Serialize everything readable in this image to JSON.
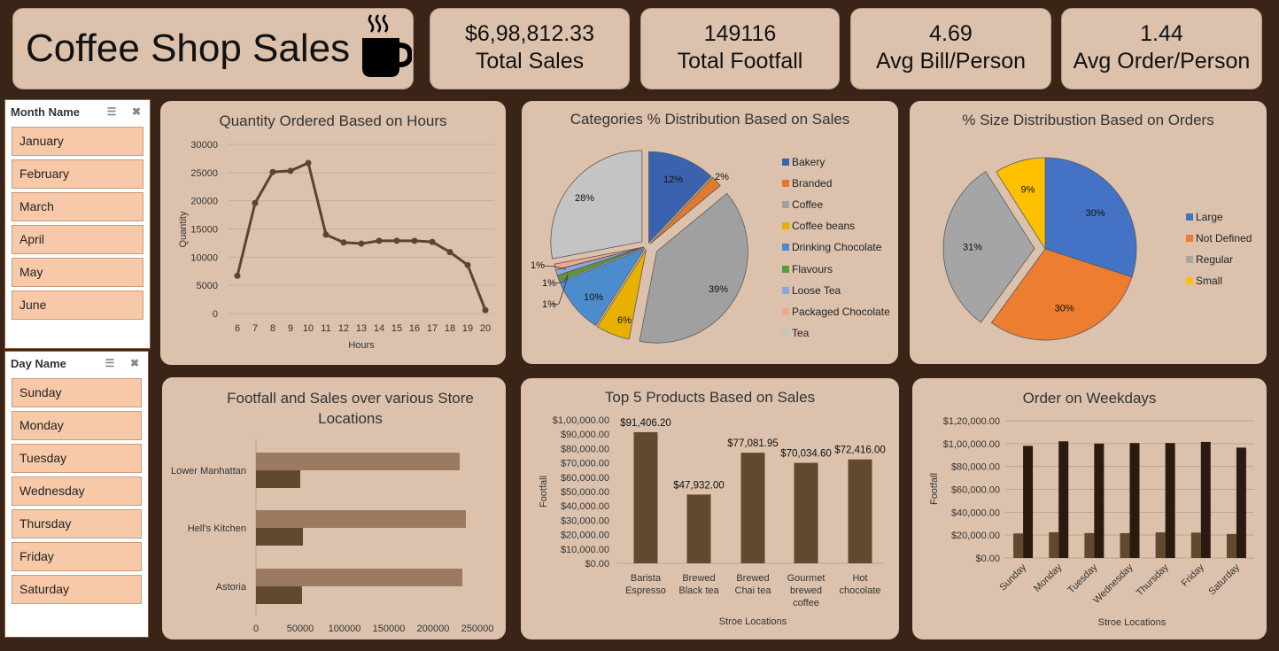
{
  "header": {
    "title": "Coffee Shop Sales",
    "icon": "coffee-cup-icon"
  },
  "kpis": [
    {
      "value": "$6,98,812.33",
      "label": "Total Sales"
    },
    {
      "value": "149116",
      "label": "Total Footfall"
    },
    {
      "value": "4.69",
      "label": "Avg Bill/Person"
    },
    {
      "value": "1.44",
      "label": "Avg Order/Person"
    }
  ],
  "month_slicer": {
    "title": "Month Name",
    "items": [
      "January",
      "February",
      "March",
      "April",
      "May",
      "June"
    ]
  },
  "day_slicer": {
    "title": "Day Name",
    "items": [
      "Sunday",
      "Monday",
      "Tuesday",
      "Wednesday",
      "Thursday",
      "Friday",
      "Saturday"
    ]
  },
  "colors": {
    "background": "#3a2418",
    "card": "#dcc2ad",
    "line": "#5e4430",
    "bar_dark": "#62482f",
    "bar_light": "#9b7a62",
    "bar_darkest": "#2a1a10"
  },
  "chart_data": [
    {
      "id": "hours",
      "type": "line",
      "title": "Quantity Ordered Based on Hours",
      "xlabel": "Hours",
      "ylabel": "Quantity",
      "x": [
        6,
        7,
        8,
        9,
        10,
        11,
        12,
        13,
        14,
        15,
        16,
        17,
        18,
        19,
        20
      ],
      "values": [
        6700,
        19600,
        25100,
        25300,
        26700,
        14000,
        12600,
        12400,
        12900,
        12900,
        12900,
        12700,
        10900,
        8600,
        600
      ],
      "ylim": [
        0,
        30000
      ],
      "yticks": [
        "0",
        "5000",
        "10000",
        "15000",
        "20000",
        "25000",
        "30000"
      ],
      "grid": true
    },
    {
      "id": "categories",
      "type": "pie",
      "title": "Categories % Distribution Based on Sales",
      "slices": [
        {
          "name": "Bakery",
          "value": 12,
          "label": "12%",
          "color": "#3b62ae"
        },
        {
          "name": "Branded",
          "value": 2,
          "label": "2%",
          "color": "#e07a2c"
        },
        {
          "name": "Coffee",
          "value": 39,
          "label": "39%",
          "color": "#a0a0a0"
        },
        {
          "name": "Coffee beans",
          "value": 6,
          "label": "6%",
          "color": "#e8b000"
        },
        {
          "name": "Drinking Chocolate",
          "value": 10,
          "label": "10%",
          "color": "#4d8ccc"
        },
        {
          "name": "Flavours",
          "value": 1,
          "label": "1%",
          "color": "#5b9a3a"
        },
        {
          "name": "Loose Tea",
          "value": 1,
          "label": "1%",
          "color": "#8ea6dc"
        },
        {
          "name": "Packaged Chocolate",
          "value": 1,
          "label": "1%",
          "color": "#f0a88a"
        },
        {
          "name": "Tea",
          "value": 28,
          "label": "28%",
          "color": "#c4c4c4"
        }
      ],
      "legend": "right"
    },
    {
      "id": "sizes",
      "type": "pie",
      "title": "% Size Distribustion Based on Orders",
      "slices": [
        {
          "name": "Large",
          "value": 30,
          "label": "30%",
          "color": "#4472c4"
        },
        {
          "name": "Not Defined",
          "value": 30,
          "label": "30%",
          "color": "#ed7d31"
        },
        {
          "name": "Regular",
          "value": 31,
          "label": "31%",
          "color": "#a5a5a5"
        },
        {
          "name": "Small",
          "value": 9,
          "label": "9%",
          "color": "#ffc000"
        }
      ],
      "legend": "right"
    },
    {
      "id": "stores",
      "type": "bar",
      "orientation": "horizontal",
      "title": "Footfall and Sales over various Store Locations",
      "categories": [
        "Lower Manhattan",
        "Hell's Kitchen",
        "Astoria"
      ],
      "series": [
        {
          "values": [
            230000,
            237000,
            233000
          ],
          "color": "#9b7a62"
        },
        {
          "values": [
            50000,
            53000,
            52000
          ],
          "color": "#62482f"
        }
      ],
      "xlim": [
        0,
        250000
      ],
      "xticks": [
        "0",
        "50000",
        "100000",
        "150000",
        "200000",
        "250000"
      ]
    },
    {
      "id": "products",
      "type": "bar",
      "title": "Top 5 Products Based on Sales",
      "categories": [
        [
          "Barista",
          "Espresso"
        ],
        [
          "Brewed",
          "Black tea"
        ],
        [
          "Brewed",
          "Chai tea"
        ],
        [
          "Gourmet",
          "brewed",
          "coffee"
        ],
        [
          "Hot",
          "chocolate"
        ]
      ],
      "values": [
        91406.2,
        47932.0,
        77081.95,
        70034.6,
        72416.0
      ],
      "data_labels": [
        "$91,406.20",
        "$47,932.00",
        "$77,081.95",
        "$70,034.60",
        "$72,416.00"
      ],
      "xlabel": "Stroe Locations",
      "ylabel": "Footfall",
      "ylim": [
        0,
        100000
      ],
      "yticks": [
        "$0.00",
        "$10,000.00",
        "$20,000.00",
        "$30,000.00",
        "$40,000.00",
        "$50,000.00",
        "$60,000.00",
        "$70,000.00",
        "$80,000.00",
        "$90,000.00",
        "$1,00,000.00"
      ]
    },
    {
      "id": "weekdays",
      "type": "bar",
      "title": "Order on Weekdays",
      "categories": [
        "Sunday",
        "Monday",
        "Tuesday",
        "Wednesday",
        "Thursday",
        "Friday",
        "Saturday"
      ],
      "series": [
        {
          "values": [
            21500,
            22500,
            21800,
            21700,
            22400,
            22200,
            21000
          ],
          "color": "#62482f"
        },
        {
          "values": [
            98000,
            102000,
            100000,
            100500,
            100500,
            101500,
            96500
          ],
          "color": "#2a1a10"
        }
      ],
      "xlabel": "Stroe Locations",
      "ylabel": "Footfall",
      "ylim": [
        0,
        120000
      ],
      "yticks": [
        "$0.00",
        "$20,000.00",
        "$40,000.00",
        "$60,000.00",
        "$80,000.00",
        "$1,00,000.00",
        "$1,20,000.00"
      ],
      "grid": true
    }
  ]
}
